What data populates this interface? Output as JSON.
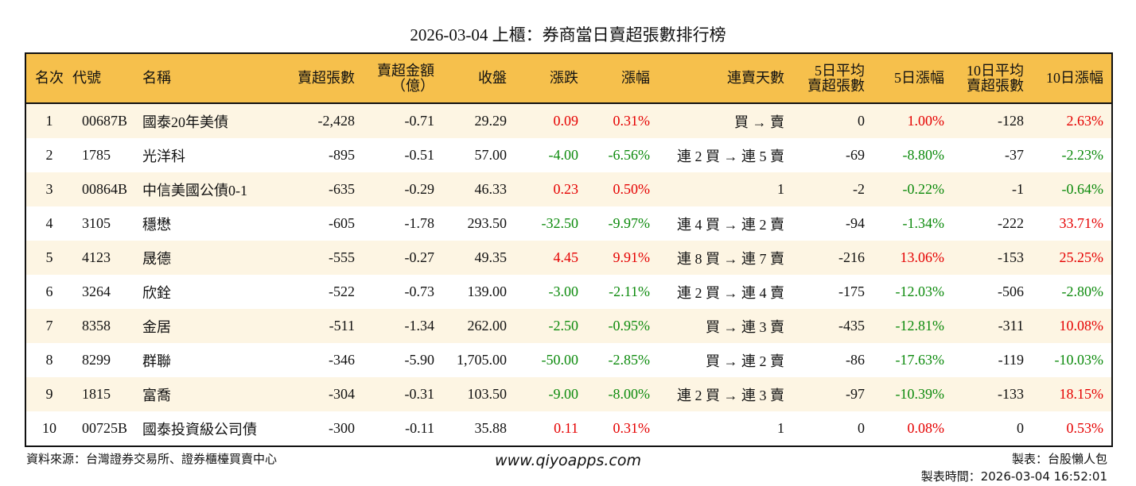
{
  "title": "2026-03-04 上櫃：券商當日賣超張數排行榜",
  "columns": [
    "名次",
    "代號",
    "名稱",
    "賣超張數",
    "賣超金額\n（億）",
    "收盤",
    "漲跌",
    "漲幅",
    "連賣天數",
    "5日平均\n賣超張數",
    "5日漲幅",
    "10日平均\n賣超張數",
    "10日漲幅"
  ],
  "rows": [
    [
      "1",
      "00687B",
      "國泰20年美債",
      "-2,428",
      "-0.71",
      "29.29",
      "0.09",
      "0.31%",
      "買 → 賣",
      "0",
      "1.00%",
      "-128",
      "2.63%"
    ],
    [
      "2",
      "1785",
      "光洋科",
      "-895",
      "-0.51",
      "57.00",
      "-4.00",
      "-6.56%",
      "連 2 買 → 連 5 賣",
      "-69",
      "-8.80%",
      "-37",
      "-2.23%"
    ],
    [
      "3",
      "00864B",
      "中信美國公債0-1",
      "-635",
      "-0.29",
      "46.33",
      "0.23",
      "0.50%",
      "1",
      "-2",
      "-0.22%",
      "-1",
      "-0.64%"
    ],
    [
      "4",
      "3105",
      "穩懋",
      "-605",
      "-1.78",
      "293.50",
      "-32.50",
      "-9.97%",
      "連 4 買 → 連 2 賣",
      "-94",
      "-1.34%",
      "-222",
      "33.71%"
    ],
    [
      "5",
      "4123",
      "晟德",
      "-555",
      "-0.27",
      "49.35",
      "4.45",
      "9.91%",
      "連 8 買 → 連 7 賣",
      "-216",
      "13.06%",
      "-153",
      "25.25%"
    ],
    [
      "6",
      "3264",
      "欣銓",
      "-522",
      "-0.73",
      "139.00",
      "-3.00",
      "-2.11%",
      "連 2 買 → 連 4 賣",
      "-175",
      "-12.03%",
      "-506",
      "-2.80%"
    ],
    [
      "7",
      "8358",
      "金居",
      "-511",
      "-1.34",
      "262.00",
      "-2.50",
      "-0.95%",
      "買 → 連 3 賣",
      "-435",
      "-12.81%",
      "-311",
      "10.08%"
    ],
    [
      "8",
      "8299",
      "群聯",
      "-346",
      "-5.90",
      "1,705.00",
      "-50.00",
      "-2.85%",
      "買 → 連 2 賣",
      "-86",
      "-17.63%",
      "-119",
      "-10.03%"
    ],
    [
      "9",
      "1815",
      "富喬",
      "-304",
      "-0.31",
      "103.50",
      "-9.00",
      "-8.00%",
      "連 2 買 → 連 3 賣",
      "-97",
      "-10.39%",
      "-133",
      "18.15%"
    ],
    [
      "10",
      "00725B",
      "國泰投資級公司債",
      "-300",
      "-0.11",
      "35.88",
      "0.11",
      "0.31%",
      "1",
      "0",
      "0.08%",
      "0",
      "0.53%"
    ]
  ],
  "footer": {
    "source": "資料來源：台灣證券交易所、證券櫃檯買賣中心",
    "site": "www.qiyoapps.com",
    "author": "製表：台股懶人包",
    "time": "製表時間：2026-03-04 16:52:01"
  },
  "colors": {
    "header": "#f6c04c",
    "up": "#e50000",
    "down": "#0c8a0c",
    "stripe": "#fdf5e3"
  }
}
